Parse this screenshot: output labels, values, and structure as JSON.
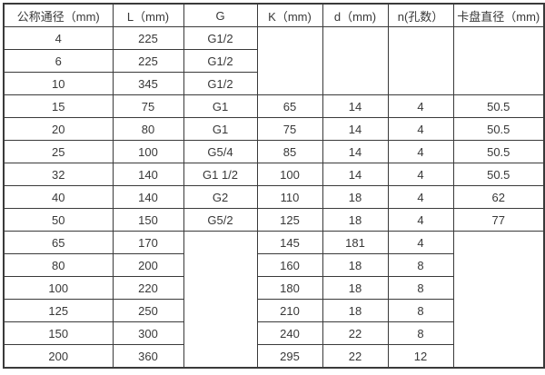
{
  "table": {
    "headers": [
      "公称通径（mm)",
      "L（mm)",
      "G",
      "K（mm)",
      "d（mm)",
      "n(孔数）",
      "卡盘直径（mm)"
    ],
    "rows": [
      [
        "4",
        "225",
        "G1/2",
        "",
        "",
        "",
        ""
      ],
      [
        "6",
        "225",
        "G1/2",
        "",
        "",
        "",
        ""
      ],
      [
        "10",
        "345",
        "G1/2",
        "",
        "",
        "",
        ""
      ],
      [
        "15",
        "75",
        "G1",
        "65",
        "14",
        "4",
        "50.5"
      ],
      [
        "20",
        "80",
        "G1",
        "75",
        "14",
        "4",
        "50.5"
      ],
      [
        "25",
        "100",
        "G5/4",
        "85",
        "14",
        "4",
        "50.5"
      ],
      [
        "32",
        "140",
        "G1 1/2",
        "100",
        "14",
        "4",
        "50.5"
      ],
      [
        "40",
        "140",
        "G2",
        "110",
        "18",
        "4",
        "62"
      ],
      [
        "50",
        "150",
        "G5/2",
        "125",
        "18",
        "4",
        "77"
      ],
      [
        "65",
        "170",
        "",
        "145",
        "181",
        "4",
        ""
      ],
      [
        "80",
        "200",
        "",
        "160",
        "18",
        "8",
        ""
      ],
      [
        "100",
        "220",
        "",
        "180",
        "18",
        "8",
        ""
      ],
      [
        "125",
        "250",
        "",
        "210",
        "18",
        "8",
        ""
      ],
      [
        "150",
        "300",
        "",
        "240",
        "22",
        "8",
        ""
      ],
      [
        "200",
        "360",
        "",
        "295",
        "22",
        "12",
        ""
      ]
    ]
  }
}
